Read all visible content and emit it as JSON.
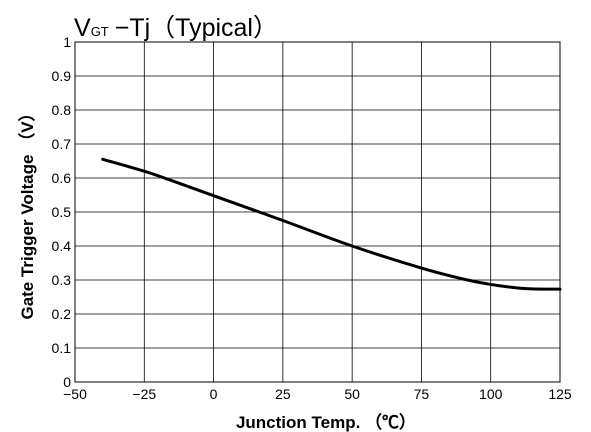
{
  "chart_data": {
    "type": "line",
    "title": {
      "symbol_main": "V",
      "symbol_sub": "GT",
      "rest": "−Tj（Typical）"
    },
    "xlabel": "Junction Temp. （℃）",
    "ylabel": "Gate Trigger Voltage （V）",
    "xlim": [
      -50,
      125
    ],
    "ylim": [
      0,
      1
    ],
    "grid": true,
    "x_ticks": [
      {
        "value": -50,
        "label": "−50"
      },
      {
        "value": -25,
        "label": "−25"
      },
      {
        "value": 0,
        "label": "0"
      },
      {
        "value": 25,
        "label": "25"
      },
      {
        "value": 50,
        "label": "50"
      },
      {
        "value": 75,
        "label": "75"
      },
      {
        "value": 100,
        "label": "100"
      },
      {
        "value": 125,
        "label": "125"
      }
    ],
    "y_ticks": [
      {
        "value": 0,
        "label": "0"
      },
      {
        "value": 0.1,
        "label": "0.1"
      },
      {
        "value": 0.2,
        "label": "0.2"
      },
      {
        "value": 0.3,
        "label": "0.3"
      },
      {
        "value": 0.4,
        "label": "0.4"
      },
      {
        "value": 0.5,
        "label": "0.5"
      },
      {
        "value": 0.6,
        "label": "0.6"
      },
      {
        "value": 0.7,
        "label": "0.7"
      },
      {
        "value": 0.8,
        "label": "0.8"
      },
      {
        "value": 0.9,
        "label": "0.9"
      },
      {
        "value": 1,
        "label": "1"
      }
    ],
    "series": [
      {
        "color": "#000000",
        "x": [
          -40,
          -25,
          -15,
          0,
          25,
          50,
          75,
          90,
          100,
          112,
          125
        ],
        "y": [
          0.655,
          0.62,
          0.592,
          0.548,
          0.475,
          0.4,
          0.335,
          0.303,
          0.287,
          0.275,
          0.273
        ]
      }
    ]
  }
}
